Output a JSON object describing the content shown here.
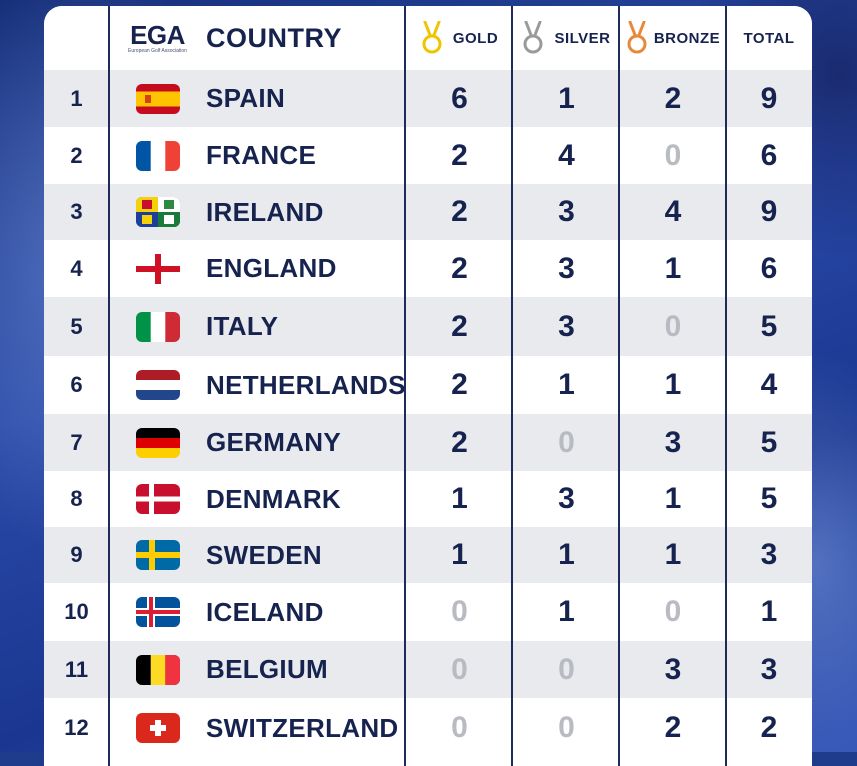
{
  "header": {
    "logo_text": "EGA",
    "logo_subtext": "European Golf Association",
    "country": "COUNTRY",
    "gold": "GOLD",
    "silver": "SILVER",
    "bronze": "BRONZE",
    "total": "TOTAL"
  },
  "colors": {
    "navy": "#17234f",
    "gold": "#f2c300",
    "silver": "#9a9a9a",
    "bronze": "#e8893a",
    "zero": "#b9bbc2"
  },
  "rows": [
    {
      "rank": "1",
      "country": "SPAIN",
      "flag": "spain-flag-icon",
      "gold": "6",
      "silver": "1",
      "bronze": "2",
      "total": "9"
    },
    {
      "rank": "2",
      "country": "FRANCE",
      "flag": "france-flag-icon",
      "gold": "2",
      "silver": "4",
      "bronze": "0",
      "total": "6"
    },
    {
      "rank": "3",
      "country": "IRELAND",
      "flag": "ireland-flag-icon",
      "gold": "2",
      "silver": "3",
      "bronze": "4",
      "total": "9"
    },
    {
      "rank": "4",
      "country": "ENGLAND",
      "flag": "england-flag-icon",
      "gold": "2",
      "silver": "3",
      "bronze": "1",
      "total": "6"
    },
    {
      "rank": "5",
      "country": "ITALY",
      "flag": "italy-flag-icon",
      "gold": "2",
      "silver": "3",
      "bronze": "0",
      "total": "5"
    },
    {
      "rank": "6",
      "country": "NETHERLANDS",
      "flag": "netherlands-flag-icon",
      "gold": "2",
      "silver": "1",
      "bronze": "1",
      "total": "4"
    },
    {
      "rank": "7",
      "country": "GERMANY",
      "flag": "germany-flag-icon",
      "gold": "2",
      "silver": "0",
      "bronze": "3",
      "total": "5"
    },
    {
      "rank": "8",
      "country": "DENMARK",
      "flag": "denmark-flag-icon",
      "gold": "1",
      "silver": "3",
      "bronze": "1",
      "total": "5"
    },
    {
      "rank": "9",
      "country": "SWEDEN",
      "flag": "sweden-flag-icon",
      "gold": "1",
      "silver": "1",
      "bronze": "1",
      "total": "3"
    },
    {
      "rank": "10",
      "country": "ICELAND",
      "flag": "iceland-flag-icon",
      "gold": "0",
      "silver": "1",
      "bronze": "0",
      "total": "1"
    },
    {
      "rank": "11",
      "country": "BELGIUM",
      "flag": "belgium-flag-icon",
      "gold": "0",
      "silver": "0",
      "bronze": "3",
      "total": "3"
    },
    {
      "rank": "12",
      "country": "SWITZERLAND",
      "flag": "switzerland-flag-icon",
      "gold": "0",
      "silver": "0",
      "bronze": "2",
      "total": "2"
    }
  ]
}
